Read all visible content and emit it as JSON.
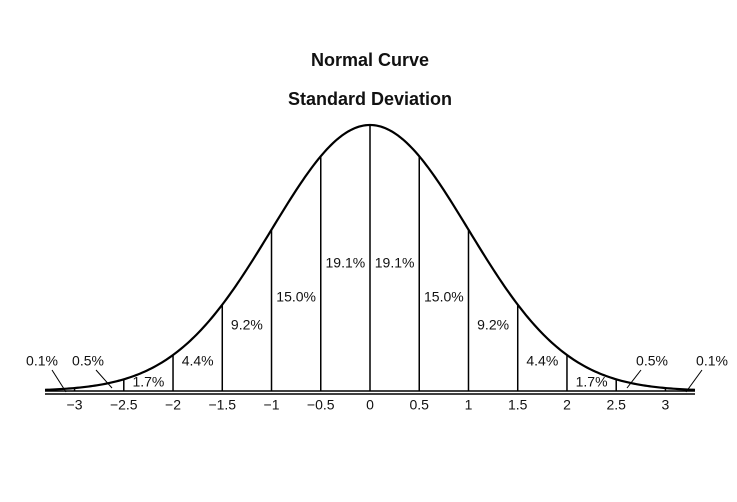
{
  "chart_data": {
    "type": "normal-curve",
    "title": "Normal Curve",
    "subtitle": "Standard Deviation",
    "xlim": [
      -3.3,
      3.3
    ],
    "xticks": [
      {
        "value": -3,
        "label": "−3"
      },
      {
        "value": -2.5,
        "label": "−2.5"
      },
      {
        "value": -2,
        "label": "−2"
      },
      {
        "value": -1.5,
        "label": "−1.5"
      },
      {
        "value": -1,
        "label": "−1"
      },
      {
        "value": -0.5,
        "label": "−0.5"
      },
      0,
      0.5,
      1,
      1.5,
      2,
      2.5,
      3
    ],
    "values": [
      0.1,
      0.5,
      1.7,
      4.4,
      9.2,
      15,
      19.1,
      19.1,
      15,
      9.2,
      4.4,
      1.7,
      0.5,
      0.1
    ],
    "value_labels": [
      "0.1%",
      "0.5%",
      "1.7%",
      "4.4%",
      "9.2%",
      "15.0%",
      "19.1%",
      "19.1%",
      "15.0%",
      "9.2%",
      "4.4%",
      "1.7%",
      "0.5%",
      "0.1%"
    ],
    "color": "#000000"
  }
}
